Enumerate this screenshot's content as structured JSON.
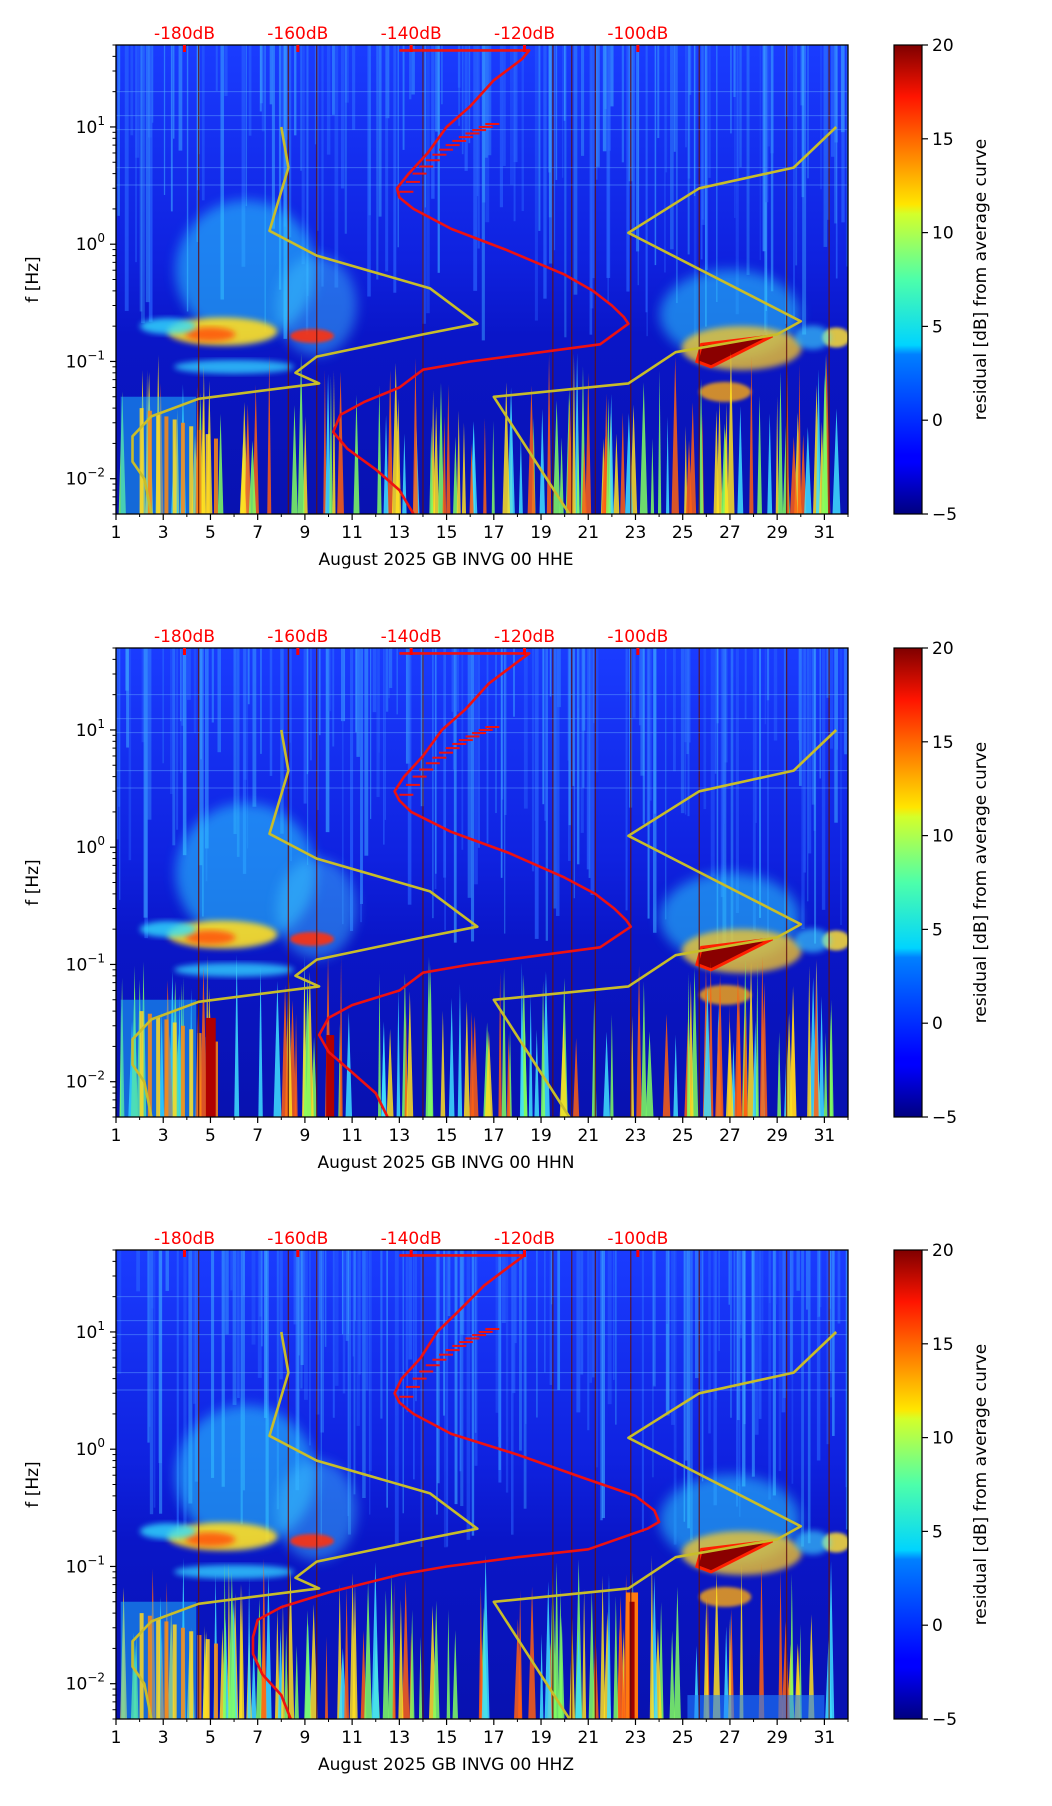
{
  "chart_data": [
    {
      "type": "heatmap",
      "title": "",
      "xlabel": "August 2025 GB INVG 00 HHE",
      "ylabel": "f [Hz]",
      "x_ticks": [
        "1",
        "3",
        "5",
        "7",
        "9",
        "11",
        "13",
        "15",
        "17",
        "19",
        "21",
        "23",
        "25",
        "27",
        "29",
        "31"
      ],
      "xlim": [
        1,
        32
      ],
      "y_scale": "log",
      "ylim": [
        0.005,
        50
      ],
      "y_ticks": [
        {
          "value": 10,
          "base": "10",
          "exp": "1"
        },
        {
          "value": 1,
          "base": "10",
          "exp": "0"
        },
        {
          "value": 0.1,
          "base": "10",
          "exp": "−1"
        },
        {
          "value": 0.01,
          "base": "10",
          "exp": "−2"
        }
      ],
      "top_axis": {
        "labels": [
          "-180dB",
          "-160dB",
          "-140dB",
          "-120dB",
          "-100dB"
        ],
        "positions_day": [
          3.9,
          8.7,
          13.5,
          18.3,
          23.1
        ],
        "color": "#ff0000"
      },
      "colorbar": {
        "label": "residual [dB] from average curve",
        "min": -5,
        "max": 20,
        "ticks": [
          "20",
          "15",
          "10",
          "5",
          "0",
          "−5"
        ],
        "tick_values": [
          20,
          15,
          10,
          5,
          0,
          -5
        ]
      },
      "series": [
        {
          "name": "noise model (yellow)",
          "color": "#c8bd2a",
          "day": [
            8.0,
            8.3,
            7.5,
            9.5,
            14.3,
            16.3,
            14.0,
            9.5,
            8.6,
            9.6,
            4.5,
            2.5,
            1.7,
            1.7,
            2.2,
            2.5
          ],
          "f": [
            10,
            4.5,
            1.3,
            0.8,
            0.42,
            0.21,
            0.17,
            0.11,
            0.08,
            0.065,
            0.048,
            0.034,
            0.023,
            0.014,
            0.01,
            0.005
          ]
        },
        {
          "name": "noise model 2 (yellow)",
          "color": "#c8bd2a",
          "day": [
            20.2,
            17.0,
            22.7,
            24.7,
            29.0,
            30.0,
            22.7,
            25.7,
            29.7,
            31.5
          ],
          "f": [
            0.005,
            0.05,
            0.065,
            0.12,
            0.17,
            0.22,
            1.25,
            3.0,
            4.5,
            10
          ]
        },
        {
          "name": "mean PSD (red)",
          "color": "#ee1111",
          "day": [
            13.0,
            18.5,
            18.2,
            17.0,
            16.0,
            15.0,
            14.2,
            13.4,
            12.9,
            13.0,
            13.6,
            15.2,
            17.5,
            20.0,
            21.2,
            22.0,
            22.5,
            22.7,
            21.5,
            19.0,
            16.0,
            14.0,
            13.0,
            11.5,
            10.5,
            10.2,
            10.8,
            12.0,
            13.0,
            13.6
          ],
          "f": [
            45,
            45,
            38,
            25,
            15,
            10,
            6,
            4,
            3,
            2.5,
            2.0,
            1.35,
            0.9,
            0.55,
            0.4,
            0.3,
            0.24,
            0.21,
            0.14,
            0.12,
            0.1,
            0.085,
            0.06,
            0.045,
            0.035,
            0.025,
            0.018,
            0.012,
            0.008,
            0.005
          ]
        }
      ]
    },
    {
      "type": "heatmap",
      "title": "",
      "xlabel": "August 2025 GB INVG 00 HHN",
      "ylabel": "f [Hz]",
      "x_ticks": [
        "1",
        "3",
        "5",
        "7",
        "9",
        "11",
        "13",
        "15",
        "17",
        "19",
        "21",
        "23",
        "25",
        "27",
        "29",
        "31"
      ],
      "xlim": [
        1,
        32
      ],
      "y_scale": "log",
      "ylim": [
        0.005,
        50
      ],
      "y_ticks": [
        {
          "value": 10,
          "base": "10",
          "exp": "1"
        },
        {
          "value": 1,
          "base": "10",
          "exp": "0"
        },
        {
          "value": 0.1,
          "base": "10",
          "exp": "−1"
        },
        {
          "value": 0.01,
          "base": "10",
          "exp": "−2"
        }
      ],
      "top_axis": {
        "labels": [
          "-180dB",
          "-160dB",
          "-140dB",
          "-120dB",
          "-100dB"
        ],
        "positions_day": [
          3.9,
          8.7,
          13.5,
          18.3,
          23.1
        ],
        "color": "#ff0000"
      },
      "colorbar": {
        "label": "residual [dB] from average curve",
        "min": -5,
        "max": 20,
        "ticks": [
          "20",
          "15",
          "10",
          "5",
          "0",
          "−5"
        ],
        "tick_values": [
          20,
          15,
          10,
          5,
          0,
          -5
        ]
      },
      "series": [
        {
          "name": "noise model (yellow)",
          "color": "#c8bd2a",
          "day": [
            8.0,
            8.3,
            7.5,
            9.5,
            14.3,
            16.3,
            14.0,
            9.5,
            8.6,
            9.6,
            4.5,
            2.5,
            1.7,
            1.7,
            2.2,
            2.5
          ],
          "f": [
            10,
            4.5,
            1.3,
            0.8,
            0.42,
            0.21,
            0.17,
            0.11,
            0.08,
            0.065,
            0.048,
            0.034,
            0.023,
            0.014,
            0.01,
            0.005
          ]
        },
        {
          "name": "noise model 2 (yellow)",
          "color": "#c8bd2a",
          "day": [
            20.2,
            17.0,
            22.7,
            24.7,
            29.0,
            30.0,
            22.7,
            25.7,
            29.7,
            31.5
          ],
          "f": [
            0.005,
            0.05,
            0.065,
            0.12,
            0.17,
            0.22,
            1.25,
            3.0,
            4.5,
            10
          ]
        },
        {
          "name": "mean PSD (red)",
          "color": "#ee1111",
          "day": [
            13.0,
            18.5,
            18.0,
            16.8,
            15.8,
            14.8,
            14.0,
            13.2,
            12.8,
            13.0,
            13.5,
            15.2,
            17.6,
            20.0,
            21.3,
            22.1,
            22.6,
            22.8,
            21.5,
            19.0,
            16.0,
            14.0,
            13.0,
            11.0,
            10.0,
            9.6,
            10.0,
            11.0,
            12.0,
            12.5
          ],
          "f": [
            45,
            45,
            38,
            25,
            15,
            10,
            6,
            4,
            3,
            2.5,
            2.0,
            1.35,
            0.9,
            0.55,
            0.4,
            0.3,
            0.24,
            0.21,
            0.14,
            0.12,
            0.1,
            0.085,
            0.06,
            0.045,
            0.035,
            0.025,
            0.018,
            0.012,
            0.008,
            0.005
          ]
        }
      ]
    },
    {
      "type": "heatmap",
      "title": "",
      "xlabel": "August 2025 GB INVG 00 HHZ",
      "ylabel": "f [Hz]",
      "x_ticks": [
        "1",
        "3",
        "5",
        "7",
        "9",
        "11",
        "13",
        "15",
        "17",
        "19",
        "21",
        "23",
        "25",
        "27",
        "29",
        "31"
      ],
      "xlim": [
        1,
        32
      ],
      "y_scale": "log",
      "ylim": [
        0.005,
        50
      ],
      "y_ticks": [
        {
          "value": 10,
          "base": "10",
          "exp": "1"
        },
        {
          "value": 1,
          "base": "10",
          "exp": "0"
        },
        {
          "value": 0.1,
          "base": "10",
          "exp": "−1"
        },
        {
          "value": 0.01,
          "base": "10",
          "exp": "−2"
        }
      ],
      "top_axis": {
        "labels": [
          "-180dB",
          "-160dB",
          "-140dB",
          "-120dB",
          "-100dB"
        ],
        "positions_day": [
          3.9,
          8.7,
          13.5,
          18.3,
          23.1
        ],
        "color": "#ff0000"
      },
      "colorbar": {
        "label": "residual [dB] from average curve",
        "min": -5,
        "max": 20,
        "ticks": [
          "20",
          "15",
          "10",
          "5",
          "0",
          "−5"
        ],
        "tick_values": [
          20,
          15,
          10,
          5,
          0,
          -5
        ]
      },
      "series": [
        {
          "name": "noise model (yellow)",
          "color": "#c8bd2a",
          "day": [
            8.0,
            8.3,
            7.5,
            9.5,
            14.3,
            16.3,
            14.0,
            9.5,
            8.6,
            9.6,
            4.5,
            2.5,
            1.7,
            1.7,
            2.2,
            2.5
          ],
          "f": [
            10,
            4.5,
            1.3,
            0.8,
            0.42,
            0.21,
            0.17,
            0.11,
            0.08,
            0.065,
            0.048,
            0.034,
            0.023,
            0.014,
            0.01,
            0.005
          ]
        },
        {
          "name": "noise model 2 (yellow)",
          "color": "#c8bd2a",
          "day": [
            20.2,
            17.0,
            22.7,
            24.7,
            29.0,
            30.0,
            22.7,
            25.7,
            29.7,
            31.5
          ],
          "f": [
            0.005,
            0.05,
            0.065,
            0.12,
            0.17,
            0.22,
            1.25,
            3.0,
            4.5,
            10
          ]
        },
        {
          "name": "mean PSD (red)",
          "color": "#ee1111",
          "day": [
            13.0,
            18.3,
            17.8,
            16.6,
            15.5,
            14.6,
            13.9,
            13.1,
            12.8,
            13.0,
            13.6,
            15.2,
            18.0,
            21.0,
            23.0,
            23.8,
            24.0,
            23.5,
            21.0,
            18.0,
            15.0,
            13.0,
            10.0,
            8.0,
            7.0,
            6.8,
            6.8,
            7.2,
            8.0,
            8.4
          ],
          "f": [
            45,
            45,
            38,
            25,
            15,
            10,
            6,
            4,
            3,
            2.5,
            2.0,
            1.35,
            0.9,
            0.55,
            0.4,
            0.3,
            0.24,
            0.21,
            0.14,
            0.12,
            0.1,
            0.085,
            0.06,
            0.045,
            0.035,
            0.025,
            0.018,
            0.012,
            0.008,
            0.005
          ]
        }
      ]
    }
  ]
}
